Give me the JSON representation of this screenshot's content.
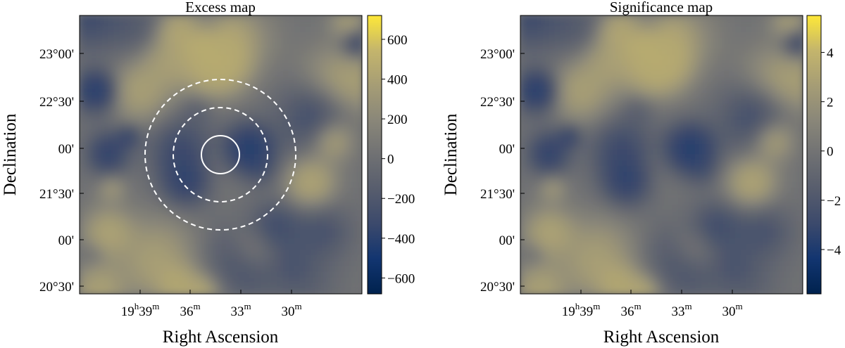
{
  "chart_data": [
    {
      "type": "heatmap",
      "title": "Excess map",
      "xlabel": "Right Ascension",
      "ylabel": "Declination",
      "x_ticks": [
        {
          "h": "19",
          "m": "39"
        },
        {
          "h": "",
          "m": "36"
        },
        {
          "h": "",
          "m": "33"
        },
        {
          "h": "",
          "m": "30"
        }
      ],
      "y_ticks": [
        "23°00'",
        "22°30'",
        "00'",
        "21°30'",
        "00'",
        "20°30'"
      ],
      "colorbar": {
        "range": [
          -680,
          720
        ],
        "ticks": [
          600,
          400,
          200,
          0,
          -200,
          -400,
          -600
        ],
        "tick_labels": [
          "600",
          "400",
          "200",
          "0",
          "−200",
          "−400",
          "−600"
        ]
      },
      "colormap": "cividis",
      "overlays": [
        {
          "kind": "circle",
          "style": "solid",
          "color": "#ffffff"
        },
        {
          "kind": "circle",
          "style": "dashed",
          "color": "#ffffff"
        },
        {
          "kind": "circle",
          "style": "dashed",
          "color": "#ffffff"
        }
      ]
    },
    {
      "type": "heatmap",
      "title": "Significance map",
      "xlabel": "Right Ascension",
      "ylabel": "Declination",
      "x_ticks": [
        {
          "h": "19",
          "m": "39"
        },
        {
          "h": "",
          "m": "36"
        },
        {
          "h": "",
          "m": "33"
        },
        {
          "h": "",
          "m": "30"
        }
      ],
      "y_ticks": [
        "23°00'",
        "22°30'",
        "00'",
        "21°30'",
        "00'",
        "20°30'"
      ],
      "colorbar": {
        "range": [
          -5.8,
          5.5
        ],
        "ticks": [
          4,
          2,
          0,
          -2,
          -4
        ],
        "tick_labels": [
          "4",
          "2",
          "0",
          "−2",
          "−4"
        ]
      },
      "colormap": "cividis",
      "overlays": []
    }
  ],
  "units": {
    "hour_sup": "h",
    "min_sup": "m"
  },
  "colors": {
    "frame": "#000000",
    "background": "#ffffff"
  }
}
